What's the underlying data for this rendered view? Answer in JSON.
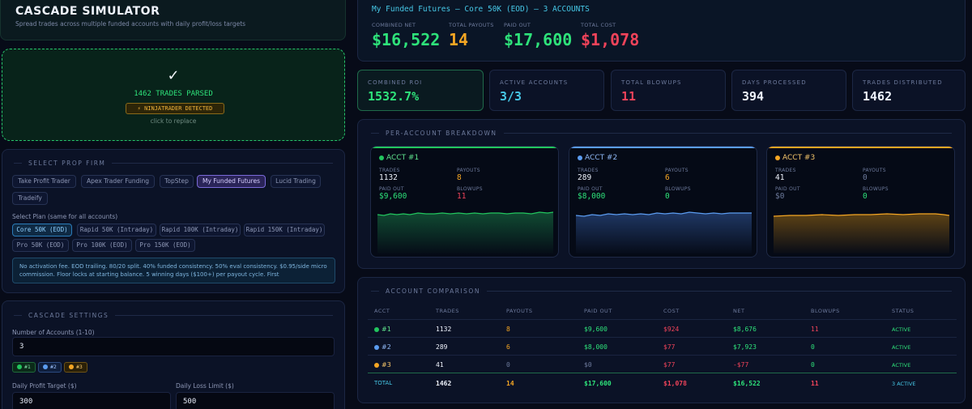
{
  "app": {
    "title": "CASCADE SIMULATOR",
    "subtitle": "Spread trades across multiple funded accounts with daily profit/loss targets"
  },
  "upload": {
    "check": "✓",
    "parsed": "1462 TRADES PARSED",
    "detected": "⚡ NINJATRADER DETECTED",
    "replace": "click to replace"
  },
  "firm": {
    "section": "SELECT PROP FIRM",
    "firms": [
      "Take Profit Trader",
      "Apex Trader Funding",
      "TopStep",
      "My Funded Futures",
      "Lucid Trading",
      "Tradeify"
    ],
    "active_firm": "My Funded Futures",
    "plan_label": "Select Plan (same for all accounts)",
    "plans": [
      "Core 50K (EOD)",
      "Rapid 50K (Intraday)",
      "Rapid 100K (Intraday)",
      "Rapid 150K (Intraday)",
      "Pro 50K (EOD)",
      "Pro 100K (EOD)",
      "Pro 150K (EOD)"
    ],
    "active_plan": "Core 50K (EOD)",
    "info": "No activation fee. EOD trailing. 80/20 split. 40% funded consistency. 50% eval consistency. $0.95/side micro commission. Floor locks at starting balance. 5 winning days ($100+) per payout cycle. First"
  },
  "cascade": {
    "section": "CASCADE SETTINGS",
    "num_label": "Number of Accounts (1-10)",
    "num_value": "3",
    "chips": [
      "#1",
      "#2",
      "#3"
    ],
    "profit_label": "Daily Profit Target ($)",
    "profit_value": "300",
    "loss_label": "Daily Loss Limit ($)",
    "loss_value": "500"
  },
  "summary": {
    "title": "My Funded Futures — Core 50K (EOD) — 3 ACCOUNTS",
    "combined_net_label": "COMBINED NET",
    "combined_net": "$16,522",
    "payouts_label": "TOTAL PAYOUTS",
    "payouts": "14",
    "paid_label": "PAID OUT",
    "paid": "$17,600",
    "cost_label": "TOTAL COST",
    "cost": "$1,078"
  },
  "stats": [
    {
      "label": "COMBINED ROI",
      "value": "1532.7%"
    },
    {
      "label": "ACTIVE ACCOUNTS",
      "value": "3/3"
    },
    {
      "label": "TOTAL BLOWUPS",
      "value": "11"
    },
    {
      "label": "DAYS PROCESSED",
      "value": "394"
    },
    {
      "label": "TRADES DISTRIBUTED",
      "value": "1462"
    }
  ],
  "breakdown": {
    "section": "PER-ACCOUNT BREAKDOWN",
    "k_trades": "TRADES",
    "k_payouts": "PAYOUTS",
    "k_paid": "PAID OUT",
    "k_blowups": "BLOWUPS",
    "accounts": [
      {
        "name": "ACCT #1",
        "trades": "1132",
        "payouts": "8",
        "paid": "$9,600",
        "blowups": "11",
        "color": "#22c55e"
      },
      {
        "name": "ACCT #2",
        "trades": "289",
        "payouts": "6",
        "paid": "$8,000",
        "blowups": "0",
        "color": "#5b9cf0"
      },
      {
        "name": "ACCT #3",
        "trades": "41",
        "payouts": "0",
        "paid": "$0",
        "blowups": "0",
        "color": "#f5a623"
      }
    ]
  },
  "comparison": {
    "section": "ACCOUNT COMPARISON",
    "headers": [
      "ACCT",
      "TRADES",
      "PAYOUTS",
      "PAID OUT",
      "COST",
      "NET",
      "BLOWUPS",
      "STATUS"
    ],
    "rows": [
      {
        "acct": "#1",
        "trades": "1132",
        "payouts": "8",
        "paid": "$9,600",
        "cost": "$924",
        "net": "$8,676",
        "blowups": "11",
        "status": "ACTIVE"
      },
      {
        "acct": "#2",
        "trades": "289",
        "payouts": "6",
        "paid": "$8,000",
        "cost": "$77",
        "net": "$7,923",
        "blowups": "0",
        "status": "ACTIVE"
      },
      {
        "acct": "#3",
        "trades": "41",
        "payouts": "0",
        "paid": "$0",
        "cost": "$77",
        "net": "-$77",
        "blowups": "0",
        "status": "ACTIVE"
      }
    ],
    "total": {
      "acct": "TOTAL",
      "trades": "1462",
      "payouts": "14",
      "paid": "$17,600",
      "cost": "$1,078",
      "net": "$16,522",
      "blowups": "11",
      "status": "3 ACTIVE"
    }
  },
  "colors": {
    "green": "#2ee27a",
    "orange": "#f5a623",
    "red": "#f0435a",
    "blue": "#46c7e6"
  }
}
